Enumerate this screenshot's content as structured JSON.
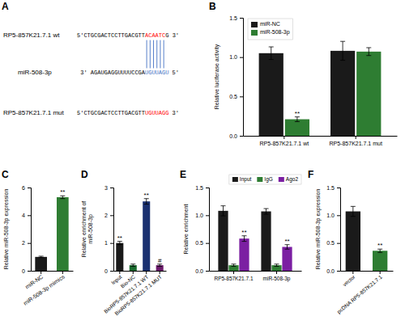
{
  "chart_data": [
    {
      "type": "sequence",
      "title": "A",
      "annotations": [
        [
          {
            "text": "RP5-857K21.7.1 wt"
          },
          {
            "text": "5'CTGCGACTCCTTGACGTT"
          },
          {
            "text": "ACAATC",
            "color": "red"
          },
          {
            "text": "G 3'"
          }
        ],
        [
          {
            "text": "miR-508-3p"
          },
          {
            "text": "3' AGAUGAGGUUUUCCGA"
          },
          {
            "text": "UGUUAGU",
            "color": "#4472c4"
          },
          {
            "text": " 5'"
          }
        ],
        [
          {
            "text": "RP5-857K21.7.1 mut"
          },
          {
            "text": "5'CTGCGACTCCTTGACGTT"
          },
          {
            "text": "UGUUAGG",
            "color": "red"
          },
          {
            "text": " 3'"
          }
        ]
      ]
    },
    {
      "type": "bar",
      "title": "B",
      "categories": [
        "RP5-857K21.7.1 wt",
        "RP5-857K21.7.1 mut"
      ],
      "series": [
        {
          "name": "miR-NC",
          "color": "#1a1a1a",
          "values": [
            1.05,
            1.08
          ],
          "errors": [
            0.08,
            0.12
          ]
        },
        {
          "name": "miR-508-3p",
          "color": "#2e7d32",
          "values": [
            0.21,
            1.07
          ],
          "errors": [
            0.03,
            0.05
          ]
        }
      ],
      "ylabel": "Relative luciferase activity",
      "ylim": [
        0,
        1.5
      ],
      "yticks": [
        {
          "value": 0,
          "label": "0.0"
        },
        0.5,
        {
          "value": 1.0,
          "label": "1.0"
        },
        1.5
      ],
      "legend": "upper left",
      "annotations": [
        {
          "text": "**",
          "category": "RP5-857K21.7.1 wt",
          "series": "miR-508-3p"
        }
      ]
    },
    {
      "type": "bar",
      "title": "C",
      "categories": [
        "miR-NC",
        "miR-508-3p mimics"
      ],
      "values": [
        1.0,
        5.3
      ],
      "errors": [
        0.05,
        0.1
      ],
      "colors": [
        "#1a1a1a",
        "#2e7d32"
      ],
      "ylabel": "Relative miR-508-3p expression",
      "ylim": [
        0,
        6
      ],
      "yticks": [
        0,
        2,
        4,
        6
      ],
      "annotations": [
        {
          "text": "**",
          "category": "miR-508-3p mimics"
        }
      ]
    },
    {
      "type": "bar",
      "title": "D",
      "categories": [
        "Input",
        "Bio-NC",
        "BioRP5-857K21.7.1 WT",
        "BioRP5-857K21.7.1 MUT"
      ],
      "values": [
        1.0,
        0.2,
        2.5,
        0.2
      ],
      "errors": [
        0.06,
        0.04,
        0.1,
        0.04
      ],
      "colors": [
        "#1a1a1a",
        "#1a6b2e",
        "#1a3070",
        "#6b1a6b"
      ],
      "ylabel": "Relative enrichment of\nmiR-508-3p",
      "ylim": [
        0,
        3
      ],
      "yticks": [
        0,
        1,
        2,
        3
      ],
      "annotations": [
        {
          "text": "**",
          "category": "Input"
        },
        {
          "text": "**",
          "category": "BioRP5-857K21.7.1 WT"
        },
        {
          "text": "#",
          "category": "BioRP5-857K21.7.1 MUT"
        }
      ]
    },
    {
      "type": "bar",
      "title": "E",
      "categories": [
        "RP5-857K21.7.1",
        "miR-508-3p"
      ],
      "series": [
        {
          "name": "Input",
          "color": "#1a1a1a",
          "values": [
            1.08,
            1.07
          ],
          "errors": [
            0.09,
            0.05
          ]
        },
        {
          "name": "IgG",
          "color": "#2e7d32",
          "values": [
            0.1,
            0.1
          ],
          "errors": [
            0.02,
            0.02
          ]
        },
        {
          "name": "Ago2",
          "color": "#7b1fa2",
          "values": [
            0.58,
            0.43
          ],
          "errors": [
            0.05,
            0.04
          ]
        }
      ],
      "ylabel": "Relative enrichment",
      "ylim": [
        0,
        1.5
      ],
      "yticks": [
        {
          "value": 0,
          "label": "0.0"
        },
        0.5,
        {
          "value": 1.0,
          "label": "1.0"
        },
        1.5
      ],
      "legend": "upper right",
      "annotations": [
        {
          "text": "**",
          "category": "RP5-857K21.7.1",
          "series": "Ago2"
        },
        {
          "text": "**",
          "category": "miR-508-3p",
          "series": "Ago2"
        }
      ]
    },
    {
      "type": "bar",
      "title": "F",
      "categories": [
        "vector",
        "pcDNA RP5-857K21.7.1"
      ],
      "values": [
        1.07,
        0.36
      ],
      "errors": [
        0.09,
        0.03
      ],
      "colors": [
        "#1a1a1a",
        "#2e7d32"
      ],
      "ylabel": "Relative miR-508-3p expression",
      "ylim": [
        0,
        1.5
      ],
      "yticks": [
        {
          "value": 0,
          "label": "0.0"
        },
        0.5,
        {
          "value": 1.0,
          "label": "1.0"
        },
        1.5
      ],
      "annotations": [
        {
          "text": "**",
          "category": "pcDNA RP5-857K21.7.1"
        }
      ]
    }
  ]
}
